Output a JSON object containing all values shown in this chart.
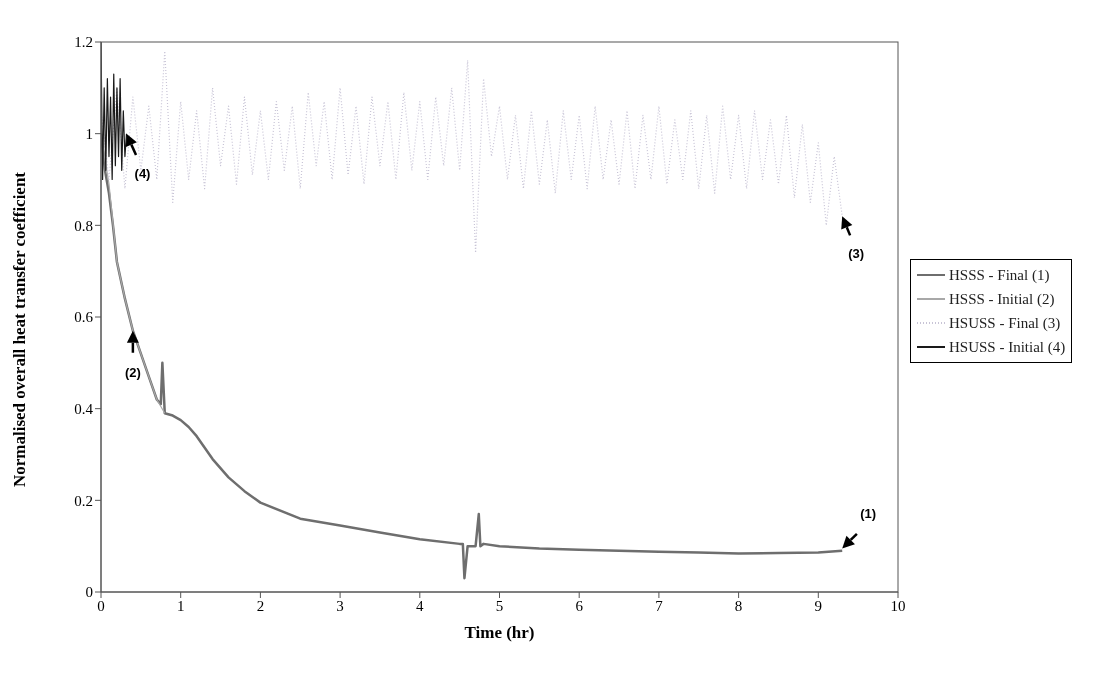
{
  "chart_data": {
    "type": "line",
    "xlabel": "Time (hr)",
    "ylabel": "Normalised overall heat transfer coefficient",
    "xlim": [
      0,
      10
    ],
    "xticks": [
      0,
      1,
      2,
      3,
      4,
      5,
      6,
      7,
      8,
      9,
      10
    ],
    "ylim": [
      0,
      1.2
    ],
    "yticks": [
      0,
      0.2,
      0.4,
      0.6,
      0.8,
      1,
      1.2
    ],
    "grid": false,
    "legend": "right",
    "marker": "none",
    "series": [
      {
        "name": "HSSS - Final (1)",
        "color": "#6e6e6e",
        "line_style": "solid",
        "x": [
          0,
          0.05,
          0.1,
          0.15,
          0.2,
          0.3,
          0.4,
          0.5,
          0.6,
          0.7,
          0.75,
          0.77,
          0.8,
          0.9,
          1.0,
          1.1,
          1.2,
          1.4,
          1.6,
          1.8,
          2.0,
          2.5,
          3.0,
          3.5,
          4.0,
          4.5,
          4.54,
          4.56,
          4.6,
          4.7,
          4.74,
          4.76,
          4.8,
          5.0,
          5.5,
          6,
          6.5,
          7,
          7.5,
          8,
          8.5,
          9,
          9.3
        ],
        "values": [
          1.0,
          0.92,
          0.87,
          0.8,
          0.72,
          0.64,
          0.57,
          0.52,
          0.47,
          0.42,
          0.41,
          0.5,
          0.39,
          0.385,
          0.375,
          0.36,
          0.34,
          0.29,
          0.25,
          0.22,
          0.195,
          0.16,
          0.145,
          0.13,
          0.115,
          0.105,
          0.105,
          0.03,
          0.1,
          0.1,
          0.17,
          0.1,
          0.105,
          0.1,
          0.095,
          0.092,
          0.09,
          0.088,
          0.086,
          0.084,
          0.085,
          0.086,
          0.09
        ]
      },
      {
        "name": "HSSS - Initial (2)",
        "color": "#a8a8a8",
        "line_style": "solid",
        "x": [
          0,
          0.1,
          0.2,
          0.3,
          0.4,
          0.5,
          0.6,
          0.7,
          0.8
        ],
        "values": [
          1.0,
          0.89,
          0.72,
          0.64,
          0.57,
          0.52,
          0.47,
          0.42,
          0.39
        ]
      },
      {
        "name": "HSUSS - Final (3)",
        "color": "#c8c4d6",
        "line_style": "dotted",
        "x": [
          0,
          0.1,
          0.2,
          0.3,
          0.4,
          0.5,
          0.6,
          0.7,
          0.8,
          0.9,
          1.0,
          1.1,
          1.2,
          1.3,
          1.4,
          1.5,
          1.6,
          1.7,
          1.8,
          1.9,
          2.0,
          2.1,
          2.2,
          2.3,
          2.4,
          2.5,
          2.6,
          2.7,
          2.8,
          2.9,
          3.0,
          3.1,
          3.2,
          3.3,
          3.4,
          3.5,
          3.6,
          3.7,
          3.8,
          3.9,
          4.0,
          4.1,
          4.2,
          4.3,
          4.4,
          4.5,
          4.6,
          4.7,
          4.8,
          4.9,
          5.0,
          5.1,
          5.2,
          5.3,
          5.4,
          5.5,
          5.6,
          5.7,
          5.8,
          5.9,
          6.0,
          6.1,
          6.2,
          6.3,
          6.4,
          6.5,
          6.6,
          6.7,
          6.8,
          6.9,
          7.0,
          7.1,
          7.2,
          7.3,
          7.4,
          7.5,
          7.6,
          7.7,
          7.8,
          7.9,
          8.0,
          8.1,
          8.2,
          8.3,
          8.4,
          8.5,
          8.6,
          8.7,
          8.8,
          8.9,
          9.0,
          9.1,
          9.2,
          9.3
        ],
        "values": [
          1.05,
          0.9,
          1.1,
          0.88,
          1.08,
          0.92,
          1.06,
          0.9,
          1.18,
          0.85,
          1.07,
          0.9,
          1.05,
          0.88,
          1.1,
          0.93,
          1.06,
          0.89,
          1.08,
          0.91,
          1.05,
          0.9,
          1.07,
          0.92,
          1.06,
          0.88,
          1.09,
          0.93,
          1.07,
          0.9,
          1.1,
          0.91,
          1.06,
          0.89,
          1.08,
          0.93,
          1.07,
          0.9,
          1.09,
          0.92,
          1.07,
          0.9,
          1.08,
          0.93,
          1.1,
          0.92,
          1.16,
          0.74,
          1.12,
          0.95,
          1.06,
          0.9,
          1.04,
          0.88,
          1.05,
          0.89,
          1.03,
          0.87,
          1.05,
          0.9,
          1.04,
          0.88,
          1.06,
          0.9,
          1.03,
          0.89,
          1.05,
          0.88,
          1.04,
          0.9,
          1.06,
          0.89,
          1.03,
          0.9,
          1.05,
          0.88,
          1.04,
          0.87,
          1.06,
          0.9,
          1.04,
          0.88,
          1.05,
          0.9,
          1.03,
          0.89,
          1.04,
          0.86,
          1.02,
          0.85,
          0.98,
          0.8,
          0.95,
          0.82
        ]
      },
      {
        "name": "HSUSS - Initial (4)",
        "color": "#1a1a1a",
        "line_style": "solid",
        "x": [
          0,
          0.02,
          0.04,
          0.06,
          0.08,
          0.1,
          0.12,
          0.14,
          0.16,
          0.18,
          0.2,
          0.22,
          0.24,
          0.26,
          0.28,
          0.3,
          0.32
        ],
        "values": [
          1.2,
          0.9,
          1.1,
          0.92,
          1.12,
          0.95,
          1.08,
          0.9,
          1.13,
          0.93,
          1.1,
          0.95,
          1.12,
          0.92,
          1.05,
          0.95,
          1.0
        ]
      }
    ],
    "annotations": [
      {
        "text": "(4)",
        "x": 0.32,
        "y": 1.0
      },
      {
        "text": "(2)",
        "x": 0.4,
        "y": 0.57
      },
      {
        "text": "(3)",
        "x": 9.3,
        "y": 0.82
      },
      {
        "text": "(1)",
        "x": 9.3,
        "y": 0.095
      }
    ]
  }
}
